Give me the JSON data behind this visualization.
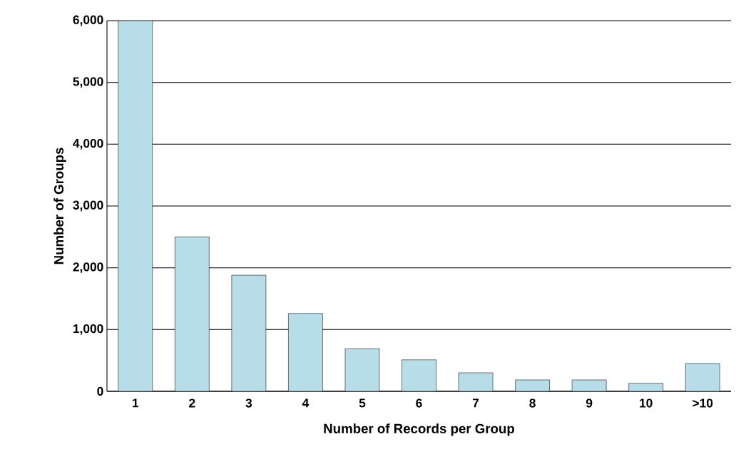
{
  "chart_data": {
    "type": "bar",
    "xlabel": "Number of Records per Group",
    "ylabel": "Number of Groups",
    "categories": [
      "1",
      "2",
      "3",
      "4",
      "5",
      "6",
      "7",
      "8",
      "9",
      "10",
      ">10"
    ],
    "values": [
      6000,
      2500,
      1880,
      1260,
      690,
      510,
      300,
      185,
      185,
      130,
      450
    ],
    "color": "#b7dde8",
    "ylim": [
      0,
      6000
    ],
    "yticks": [
      {
        "value": 0,
        "label": "0"
      },
      {
        "value": 1000,
        "label": "1,000"
      },
      {
        "value": 2000,
        "label": "2,000"
      },
      {
        "value": 3000,
        "label": "3,000"
      },
      {
        "value": 4000,
        "label": "4,000"
      },
      {
        "value": 5000,
        "label": "5,000"
      },
      {
        "value": 6000,
        "label": "6,000"
      }
    ],
    "grid": "y"
  }
}
